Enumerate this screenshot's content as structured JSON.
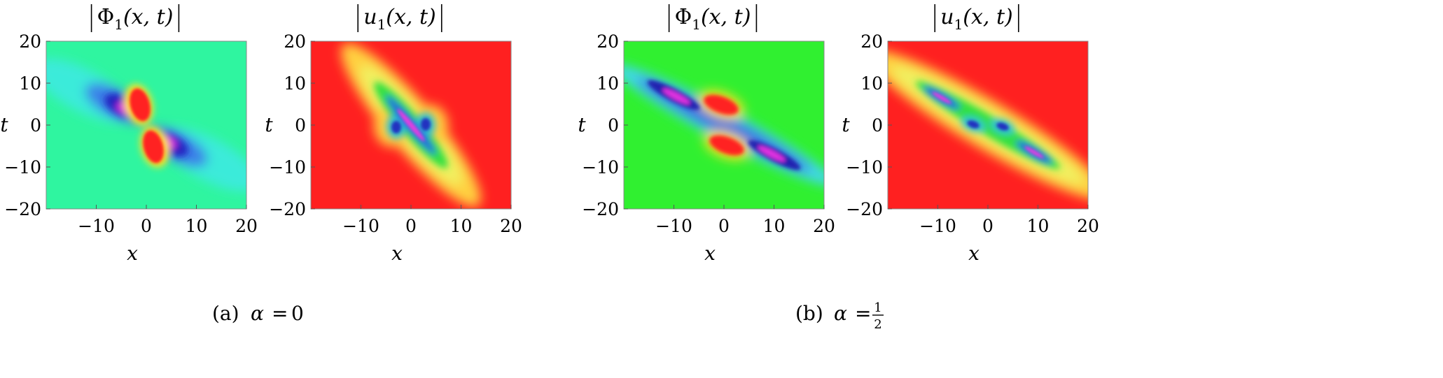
{
  "chart_data": [
    {
      "type": "heatmap",
      "group_caption": "(a) α = 0",
      "title": "|Φ1(x, t)|",
      "title_base": "Φ",
      "title_sub": "1",
      "title_args": "(x, t)",
      "xlabel": "x",
      "ylabel": "t",
      "xlim": [
        -20,
        20
      ],
      "ylim": [
        -20,
        20
      ],
      "x_ticks": [
        -10,
        0,
        10,
        20
      ],
      "y_ticks": [
        -20,
        -10,
        0,
        10,
        20
      ],
      "colormap": "rainbow (red → yellow → green → cyan → blue → magenta)",
      "background_color": "#2ff5a0",
      "features": "anti-diagonal dipole; blue/magenta lobes at (-6,4) and (6,-4); red lobes at (-1,5) and (1,-5)"
    },
    {
      "type": "heatmap",
      "group_caption": "(a) α = 0",
      "title": "|u1(x, t)|",
      "title_base": "u",
      "title_sub": "1",
      "title_args": "(x, t)",
      "xlabel": "x",
      "ylabel": "t",
      "xlim": [
        -20,
        20
      ],
      "ylim": [
        -20,
        20
      ],
      "x_ticks": [
        -10,
        0,
        10,
        20
      ],
      "y_ticks": [
        -20,
        -10,
        0,
        10,
        20
      ],
      "colormap": "rainbow",
      "background_color": "#ff2020",
      "features": "red background; anti-diagonal band with blue cores near (-3,0) and (3,0)"
    },
    {
      "type": "heatmap",
      "group_caption": "(b) α = 1/2",
      "title": "|Φ1(x, t)|",
      "title_base": "Φ",
      "title_sub": "1",
      "title_args": "(x, t)",
      "xlabel": "x",
      "ylabel": "t",
      "xlim": [
        -20,
        20
      ],
      "ylim": [
        -20,
        20
      ],
      "x_ticks": [
        -10,
        0,
        10,
        20
      ],
      "y_ticks": [
        -20,
        -10,
        0,
        10,
        20
      ],
      "colormap": "rainbow",
      "background_color": "#30f030",
      "features": "green background; tilted band with blue/magenta lobes at (-12,6) and (12,-6); red lobes above and below origin"
    },
    {
      "type": "heatmap",
      "group_caption": "(b) α = 1/2",
      "title": "|u1(x, t)|",
      "title_base": "u",
      "title_sub": "1",
      "title_args": "(x, t)",
      "xlabel": "x",
      "ylabel": "t",
      "xlim": [
        -20,
        20
      ],
      "ylim": [
        -20,
        20
      ],
      "x_ticks": [
        -10,
        0,
        10,
        20
      ],
      "y_ticks": [
        -20,
        -10,
        0,
        10,
        20
      ],
      "colormap": "rainbow",
      "background_color": "#ff2020",
      "features": "red background; tilted band with blue cores near (-3,0) and (3,0), magenta/blue streaks at ends"
    }
  ],
  "captions": {
    "a_label": "(a)",
    "a_alpha": "α",
    "a_eq": "=",
    "a_value": "0",
    "b_label": "(b)",
    "b_alpha": "α",
    "b_eq": "=",
    "b_num": "1",
    "b_den": "2"
  }
}
